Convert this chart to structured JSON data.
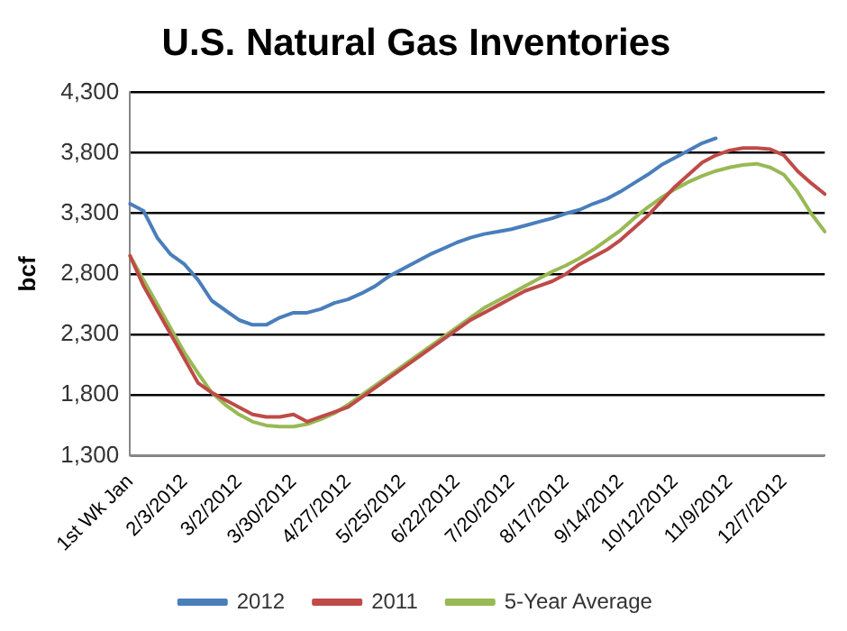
{
  "chart_data": {
    "type": "line",
    "title": "U.S. Natural Gas Inventories",
    "ylabel": "bcf",
    "categories": [
      "1st Wk Jan",
      null,
      null,
      null,
      "2/3/2012",
      null,
      null,
      null,
      "3/2/2012",
      null,
      null,
      null,
      "3/30/2012",
      null,
      null,
      null,
      "4/27/2012",
      null,
      null,
      null,
      "5/25/2012",
      null,
      null,
      null,
      "6/22/2012",
      null,
      null,
      null,
      "7/20/2012",
      null,
      null,
      null,
      "8/17/2012",
      null,
      null,
      null,
      "9/14/2012",
      null,
      null,
      null,
      "10/12/2012",
      null,
      null,
      null,
      "11/9/2012",
      null,
      null,
      null,
      "12/7/2012",
      null,
      null,
      null
    ],
    "series": [
      {
        "name": "2012",
        "color": "#4a7ebb",
        "values": [
          3380,
          3320,
          3100,
          2960,
          2880,
          2750,
          2580,
          2500,
          2420,
          2380,
          2380,
          2440,
          2480,
          2480,
          2510,
          2560,
          2590,
          2640,
          2700,
          2780,
          2840,
          2900,
          2960,
          3010,
          3060,
          3100,
          3130,
          3150,
          3170,
          3200,
          3230,
          3260,
          3300,
          3330,
          3380,
          3420,
          3480,
          3550,
          3620,
          3700,
          3760,
          3820,
          3880,
          3920,
          null,
          null,
          null,
          null,
          null,
          null,
          null,
          null
        ]
      },
      {
        "name": "2011",
        "color": "#be4b48",
        "values": [
          2950,
          2700,
          2500,
          2300,
          2100,
          1900,
          1820,
          1760,
          1700,
          1640,
          1620,
          1620,
          1640,
          1580,
          1620,
          1660,
          1700,
          1780,
          1860,
          1940,
          2020,
          2100,
          2180,
          2260,
          2340,
          2420,
          2480,
          2540,
          2600,
          2660,
          2700,
          2740,
          2800,
          2880,
          2940,
          3000,
          3080,
          3180,
          3280,
          3400,
          3520,
          3620,
          3720,
          3780,
          3820,
          3840,
          3840,
          3830,
          3780,
          3650,
          3550,
          3460
        ]
      },
      {
        "name": "5-Year Average",
        "color": "#98b954",
        "values": [
          2950,
          2750,
          2550,
          2350,
          2150,
          1980,
          1820,
          1720,
          1640,
          1580,
          1550,
          1540,
          1540,
          1560,
          1600,
          1650,
          1720,
          1800,
          1880,
          1960,
          2040,
          2120,
          2200,
          2280,
          2360,
          2440,
          2520,
          2580,
          2640,
          2700,
          2760,
          2820,
          2870,
          2930,
          3000,
          3080,
          3160,
          3260,
          3350,
          3430,
          3500,
          3560,
          3610,
          3650,
          3680,
          3700,
          3710,
          3680,
          3620,
          3480,
          3300,
          3150
        ]
      }
    ],
    "ylim": [
      1300,
      4300
    ],
    "yticks": [
      {
        "value": 1300,
        "label": "1,300"
      },
      {
        "value": 1800,
        "label": "1,800"
      },
      {
        "value": 2300,
        "label": "2,300"
      },
      {
        "value": 2800,
        "label": "2,800"
      },
      {
        "value": 3300,
        "label": "3,300"
      },
      {
        "value": 3800,
        "label": "3,800"
      },
      {
        "value": 4300,
        "label": "4,300"
      }
    ],
    "grid": "y",
    "legend": "bottom",
    "marker": "none",
    "line_style": "solid"
  }
}
